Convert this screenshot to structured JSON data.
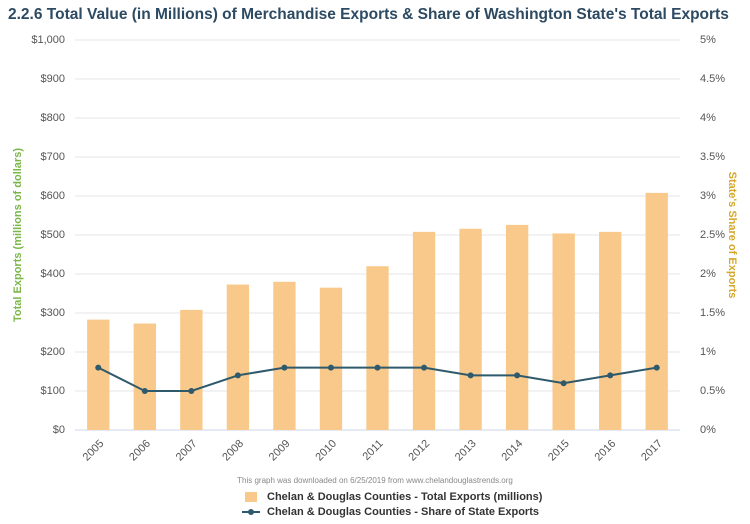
{
  "chart_data": {
    "type": "bar",
    "title": "2.2.6 Total Value (in Millions) of Merchandise Exports & Share of Washington State's Total Exports",
    "ylabel": "Total Exports (millions of dollars)",
    "y2label": "State's Share of Exports",
    "note": "This graph was downloaded on 6/25/2019 from www.chelandouglastrends.org",
    "categories": [
      "2005",
      "2006",
      "2007",
      "2008",
      "2009",
      "2010",
      "2011",
      "2012",
      "2013",
      "2014",
      "2015",
      "2016",
      "2017"
    ],
    "series": [
      {
        "name": "Chelan & Douglas Counties - Total Exports (millions)",
        "color": "#f9c98b",
        "type": "bar",
        "values": [
          283,
          273,
          308,
          373,
          380,
          365,
          420,
          508,
          516,
          526,
          504,
          508,
          608
        ]
      },
      {
        "name": "Chelan & Douglas Counties - Share of State Exports",
        "color": "#2e5a6b",
        "type": "line",
        "axis": "y2",
        "values": [
          0.8,
          0.5,
          0.5,
          0.7,
          0.8,
          0.8,
          0.8,
          0.8,
          0.7,
          0.7,
          0.6,
          0.7,
          0.8
        ]
      }
    ],
    "ylim": [
      0,
      1000
    ],
    "yticks": [
      {
        "value": 0,
        "label": "$0"
      },
      {
        "value": 100,
        "label": "$100"
      },
      {
        "value": 200,
        "label": "$200"
      },
      {
        "value": 300,
        "label": "$300"
      },
      {
        "value": 400,
        "label": "$400"
      },
      {
        "value": 500,
        "label": "$500"
      },
      {
        "value": 600,
        "label": "$600"
      },
      {
        "value": 700,
        "label": "$700"
      },
      {
        "value": 800,
        "label": "$800"
      },
      {
        "value": 900,
        "label": "$900"
      },
      {
        "value": 1000,
        "label": "$1,000"
      }
    ],
    "y2lim": [
      0,
      5
    ],
    "y2ticks": [
      {
        "value": 0,
        "label": "0%"
      },
      {
        "value": 0.5,
        "label": "0.5%"
      },
      {
        "value": 1,
        "label": "1%"
      },
      {
        "value": 1.5,
        "label": "1.5%"
      },
      {
        "value": 2,
        "label": "2%"
      },
      {
        "value": 2.5,
        "label": "2.5%"
      },
      {
        "value": 3,
        "label": "3%"
      },
      {
        "value": 3.5,
        "label": "3.5%"
      },
      {
        "value": 4,
        "label": "4%"
      },
      {
        "value": 4.5,
        "label": "4.5%"
      },
      {
        "value": 5,
        "label": "5%"
      }
    ],
    "grid": true
  }
}
